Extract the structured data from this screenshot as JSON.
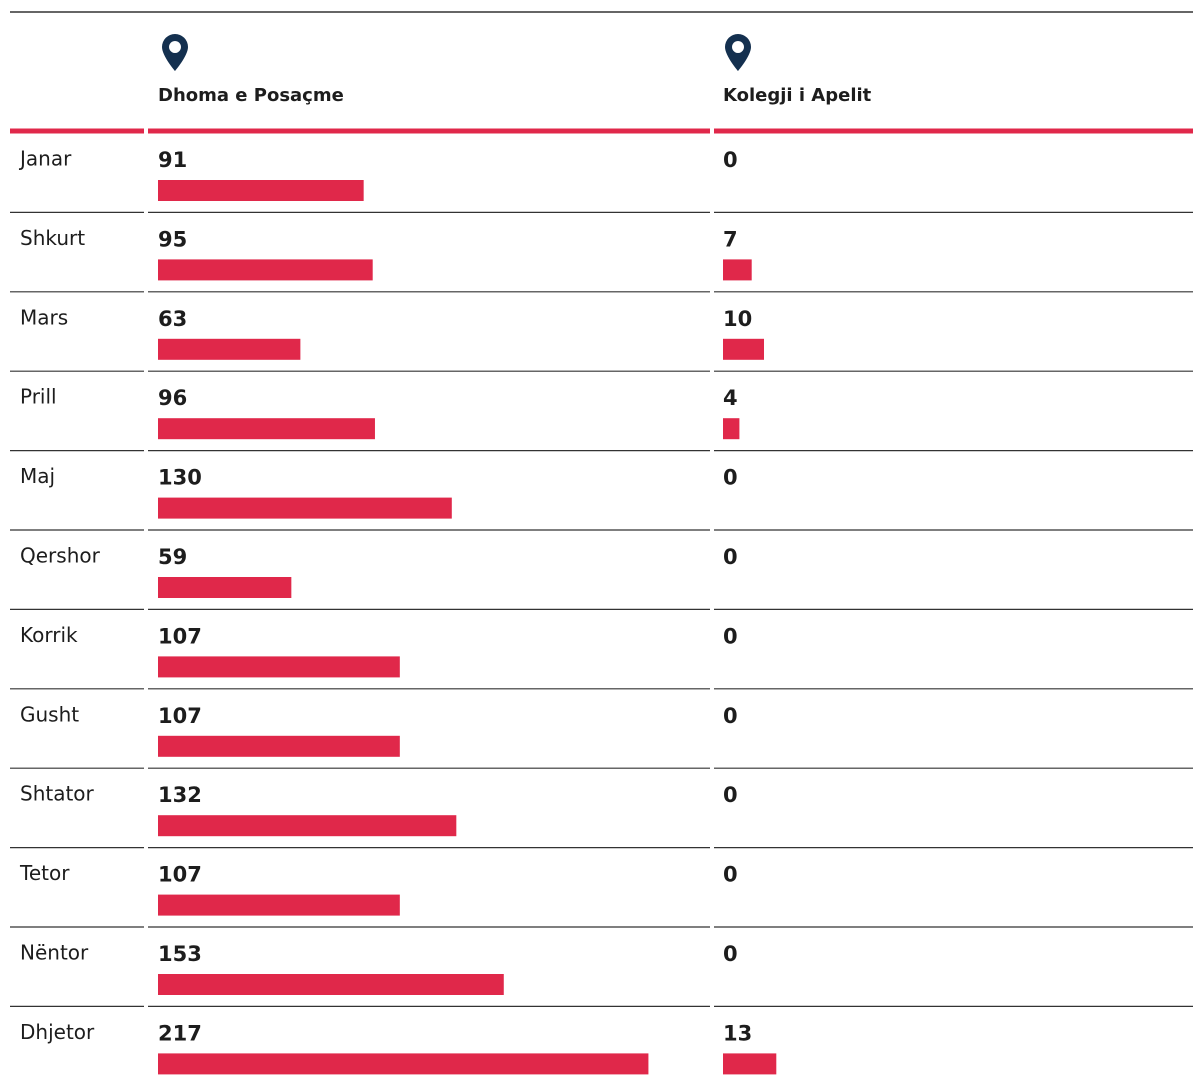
{
  "chart_data": {
    "type": "bar",
    "categories": [
      "Janar",
      "Shkurt",
      "Mars",
      "Prill",
      "Maj",
      "Qershor",
      "Korrik",
      "Gusht",
      "Shtator",
      "Tetor",
      "Nëntor",
      "Dhjetor"
    ],
    "series": [
      {
        "name": "Dhoma e Posaçme",
        "color": "#e0284a",
        "values": [
          91,
          95,
          63,
          96,
          130,
          59,
          107,
          107,
          132,
          107,
          153,
          217
        ]
      },
      {
        "name": "Kolegji i Apelit",
        "color": "#e0284a",
        "values": [
          0,
          7,
          10,
          4,
          0,
          0,
          0,
          0,
          0,
          0,
          0,
          13
        ]
      }
    ]
  }
}
